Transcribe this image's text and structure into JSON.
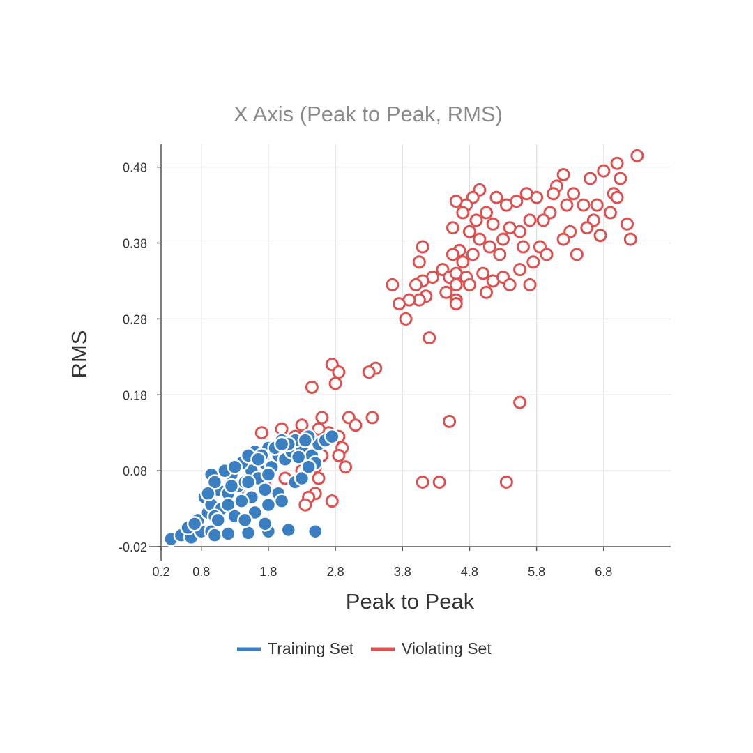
{
  "chart_data": {
    "type": "scatter",
    "title": "X Axis (Peak to Peak, RMS)",
    "xlabel": "Peak to Peak",
    "ylabel": "RMS",
    "xlim": [
      0.2,
      7.8
    ],
    "ylim": [
      -0.02,
      0.51
    ],
    "x_ticks": [
      "0.2",
      "0.8",
      "1.8",
      "2.8",
      "3.8",
      "4.8",
      "5.8",
      "6.8"
    ],
    "x_tick_values": [
      0.2,
      0.8,
      1.8,
      2.8,
      3.8,
      4.8,
      5.8,
      6.8
    ],
    "y_ticks": [
      "-0.02",
      "0.08",
      "0.18",
      "0.28",
      "0.38",
      "0.48"
    ],
    "y_tick_values": [
      -0.02,
      0.08,
      0.18,
      0.28,
      0.38,
      0.48
    ],
    "grid": true,
    "legend_position": "bottom-center",
    "series": [
      {
        "name": "Training Set",
        "color": "#3a7fc1",
        "marker": "filled-circle",
        "points": [
          [
            0.35,
            -0.01
          ],
          [
            0.5,
            -0.005
          ],
          [
            0.65,
            -0.008
          ],
          [
            0.8,
            0.0
          ],
          [
            0.95,
            0.0
          ],
          [
            1.0,
            -0.005
          ],
          [
            1.2,
            -0.003
          ],
          [
            1.5,
            -0.002
          ],
          [
            1.8,
            0.0
          ],
          [
            2.1,
            0.002
          ],
          [
            2.5,
            0.0
          ],
          [
            0.6,
            0.005
          ],
          [
            0.75,
            0.015
          ],
          [
            0.9,
            0.025
          ],
          [
            0.85,
            0.045
          ],
          [
            0.95,
            0.035
          ],
          [
            1.1,
            0.03
          ],
          [
            1.05,
            0.055
          ],
          [
            1.2,
            0.05
          ],
          [
            1.35,
            0.06
          ],
          [
            1.25,
            0.075
          ],
          [
            1.45,
            0.065
          ],
          [
            1.55,
            0.08
          ],
          [
            1.65,
            0.07
          ],
          [
            1.75,
            0.09
          ],
          [
            1.85,
            0.085
          ],
          [
            1.95,
            0.1
          ],
          [
            2.05,
            0.095
          ],
          [
            2.15,
            0.105
          ],
          [
            2.3,
            0.11
          ],
          [
            2.45,
            0.1
          ],
          [
            2.55,
            0.115
          ],
          [
            2.65,
            0.12
          ],
          [
            2.75,
            0.125
          ],
          [
            2.4,
            0.125
          ],
          [
            2.2,
            0.12
          ],
          [
            2.0,
            0.12
          ],
          [
            1.8,
            0.11
          ],
          [
            1.6,
            0.105
          ],
          [
            1.4,
            0.09
          ],
          [
            1.15,
            0.08
          ],
          [
            0.95,
            0.075
          ],
          [
            1.0,
            0.065
          ],
          [
            1.3,
            0.085
          ],
          [
            1.5,
            0.1
          ],
          [
            1.7,
            0.1
          ],
          [
            1.9,
            0.11
          ],
          [
            2.1,
            0.115
          ],
          [
            2.35,
            0.12
          ],
          [
            1.55,
            0.045
          ],
          [
            1.75,
            0.055
          ],
          [
            1.95,
            0.05
          ],
          [
            2.2,
            0.065
          ],
          [
            1.4,
            0.04
          ],
          [
            1.2,
            0.035
          ],
          [
            1.6,
            0.025
          ],
          [
            1.8,
            0.035
          ],
          [
            2.0,
            0.04
          ],
          [
            2.3,
            0.07
          ],
          [
            2.5,
            0.09
          ],
          [
            1.0,
            0.02
          ],
          [
            1.3,
            0.02
          ],
          [
            0.7,
            0.01
          ],
          [
            2.4,
            0.085
          ],
          [
            1.5,
            0.065
          ],
          [
            1.8,
            0.075
          ],
          [
            2.25,
            0.098
          ],
          [
            1.05,
            0.015
          ],
          [
            1.45,
            0.015
          ],
          [
            1.75,
            0.01
          ],
          [
            2.0,
            0.115
          ],
          [
            1.65,
            0.095
          ],
          [
            1.25,
            0.06
          ],
          [
            0.9,
            0.05
          ]
        ]
      },
      {
        "name": "Violating Set",
        "color": "#dc5250",
        "marker": "open-circle",
        "points": [
          [
            7.3,
            0.495
          ],
          [
            7.0,
            0.485
          ],
          [
            6.8,
            0.475
          ],
          [
            7.05,
            0.465
          ],
          [
            6.95,
            0.445
          ],
          [
            7.0,
            0.44
          ],
          [
            6.7,
            0.43
          ],
          [
            6.9,
            0.42
          ],
          [
            6.6,
            0.465
          ],
          [
            6.35,
            0.445
          ],
          [
            6.5,
            0.43
          ],
          [
            6.65,
            0.41
          ],
          [
            6.55,
            0.4
          ],
          [
            6.75,
            0.39
          ],
          [
            7.15,
            0.405
          ],
          [
            7.2,
            0.385
          ],
          [
            6.2,
            0.47
          ],
          [
            6.1,
            0.455
          ],
          [
            6.05,
            0.445
          ],
          [
            6.25,
            0.43
          ],
          [
            6.0,
            0.42
          ],
          [
            5.8,
            0.44
          ],
          [
            5.65,
            0.445
          ],
          [
            5.9,
            0.41
          ],
          [
            6.3,
            0.395
          ],
          [
            6.2,
            0.385
          ],
          [
            6.4,
            0.365
          ],
          [
            5.85,
            0.375
          ],
          [
            5.95,
            0.365
          ],
          [
            5.75,
            0.355
          ],
          [
            5.6,
            0.375
          ],
          [
            5.55,
            0.395
          ],
          [
            5.7,
            0.41
          ],
          [
            5.4,
            0.4
          ],
          [
            5.35,
            0.43
          ],
          [
            5.5,
            0.435
          ],
          [
            5.2,
            0.44
          ],
          [
            5.05,
            0.42
          ],
          [
            5.15,
            0.405
          ],
          [
            5.3,
            0.385
          ],
          [
            5.1,
            0.375
          ],
          [
            5.25,
            0.365
          ],
          [
            4.95,
            0.45
          ],
          [
            4.85,
            0.44
          ],
          [
            4.75,
            0.43
          ],
          [
            4.6,
            0.435
          ],
          [
            4.7,
            0.42
          ],
          [
            4.9,
            0.41
          ],
          [
            4.55,
            0.4
          ],
          [
            4.8,
            0.395
          ],
          [
            4.95,
            0.385
          ],
          [
            4.65,
            0.37
          ],
          [
            4.85,
            0.365
          ],
          [
            4.55,
            0.365
          ],
          [
            4.7,
            0.355
          ],
          [
            4.4,
            0.345
          ],
          [
            4.5,
            0.335
          ],
          [
            4.6,
            0.34
          ],
          [
            4.75,
            0.335
          ],
          [
            4.8,
            0.325
          ],
          [
            4.6,
            0.325
          ],
          [
            4.45,
            0.315
          ],
          [
            5.0,
            0.34
          ],
          [
            5.15,
            0.33
          ],
          [
            5.3,
            0.335
          ],
          [
            5.4,
            0.325
          ],
          [
            5.55,
            0.345
          ],
          [
            5.7,
            0.325
          ],
          [
            5.05,
            0.315
          ],
          [
            4.25,
            0.335
          ],
          [
            4.1,
            0.33
          ],
          [
            4.0,
            0.325
          ],
          [
            4.15,
            0.31
          ],
          [
            4.05,
            0.305
          ],
          [
            3.9,
            0.305
          ],
          [
            3.75,
            0.3
          ],
          [
            3.65,
            0.325
          ],
          [
            3.85,
            0.28
          ],
          [
            4.05,
            0.355
          ],
          [
            4.1,
            0.375
          ],
          [
            4.6,
            0.305
          ],
          [
            4.6,
            0.3
          ],
          [
            4.2,
            0.255
          ],
          [
            5.55,
            0.17
          ],
          [
            4.5,
            0.145
          ],
          [
            3.4,
            0.215
          ],
          [
            3.3,
            0.21
          ],
          [
            2.75,
            0.22
          ],
          [
            2.85,
            0.21
          ],
          [
            2.8,
            0.195
          ],
          [
            2.45,
            0.19
          ],
          [
            2.6,
            0.15
          ],
          [
            3.0,
            0.15
          ],
          [
            3.35,
            0.15
          ],
          [
            3.1,
            0.14
          ],
          [
            2.7,
            0.13
          ],
          [
            2.85,
            0.125
          ],
          [
            2.9,
            0.11
          ],
          [
            2.85,
            0.1
          ],
          [
            2.95,
            0.085
          ],
          [
            2.55,
            0.07
          ],
          [
            2.5,
            0.05
          ],
          [
            2.4,
            0.045
          ],
          [
            2.75,
            0.04
          ],
          [
            2.35,
            0.035
          ],
          [
            4.1,
            0.065
          ],
          [
            4.35,
            0.065
          ],
          [
            5.35,
            0.065
          ],
          [
            2.3,
            0.14
          ],
          [
            2.55,
            0.135
          ],
          [
            1.7,
            0.13
          ],
          [
            2.0,
            0.135
          ],
          [
            2.2,
            0.125
          ],
          [
            2.4,
            0.11
          ],
          [
            2.6,
            0.1
          ],
          [
            2.5,
            0.085
          ],
          [
            2.3,
            0.08
          ],
          [
            2.05,
            0.07
          ],
          [
            1.75,
            0.06
          ],
          [
            1.5,
            0.05
          ]
        ]
      }
    ]
  }
}
